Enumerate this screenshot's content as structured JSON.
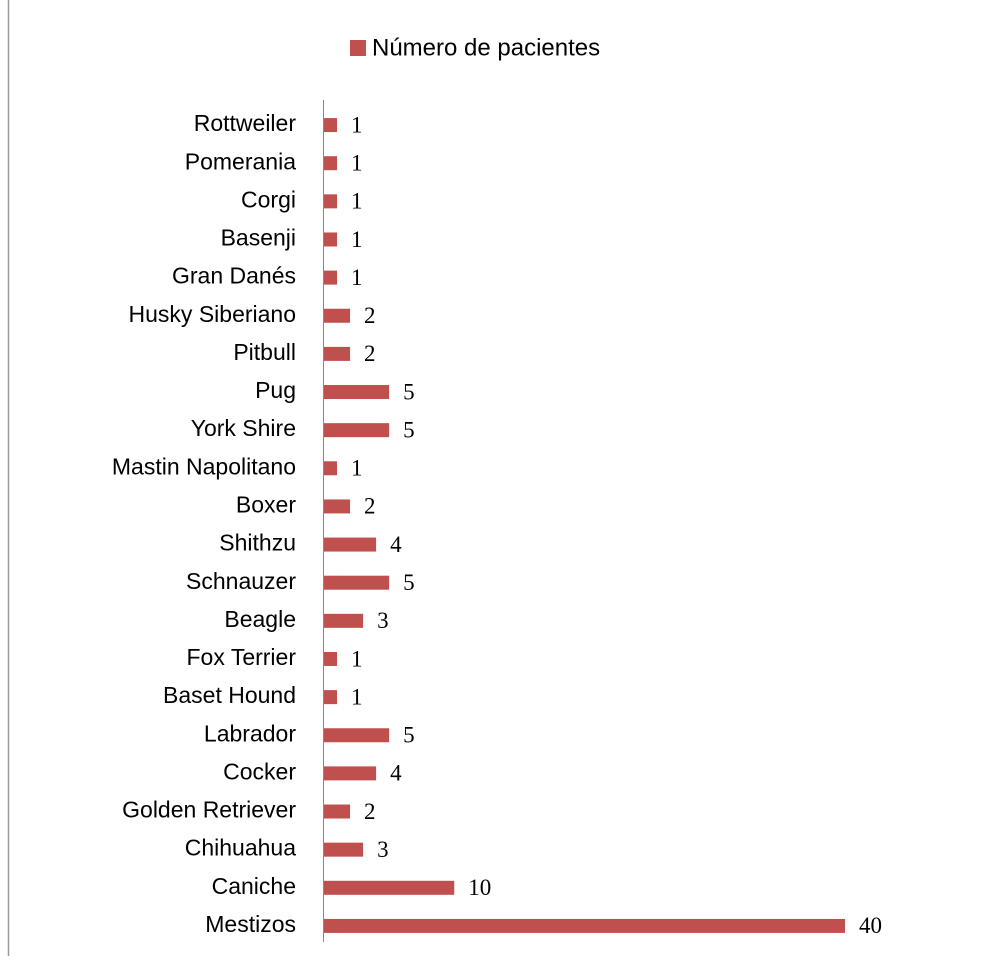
{
  "chart_data": {
    "type": "bar",
    "orientation": "horizontal",
    "categories": [
      "Rottweiler",
      "Pomerania",
      "Corgi",
      "Basenji",
      "Gran Danés",
      "Husky Siberiano",
      "Pitbull",
      "Pug",
      "York Shire",
      "Mastin Napolitano",
      "Boxer",
      "Shithzu",
      "Schnauzer",
      "Beagle",
      "Fox Terrier",
      "Baset Hound",
      "Labrador",
      "Cocker",
      "Golden Retriever",
      "Chihuahua",
      "Caniche",
      "Mestizos"
    ],
    "series": [
      {
        "name": "Número de pacientes",
        "color": "#c0504d",
        "values": [
          1,
          1,
          1,
          1,
          1,
          2,
          2,
          5,
          5,
          1,
          2,
          4,
          5,
          3,
          1,
          1,
          5,
          4,
          2,
          3,
          10,
          40
        ]
      }
    ]
  }
}
